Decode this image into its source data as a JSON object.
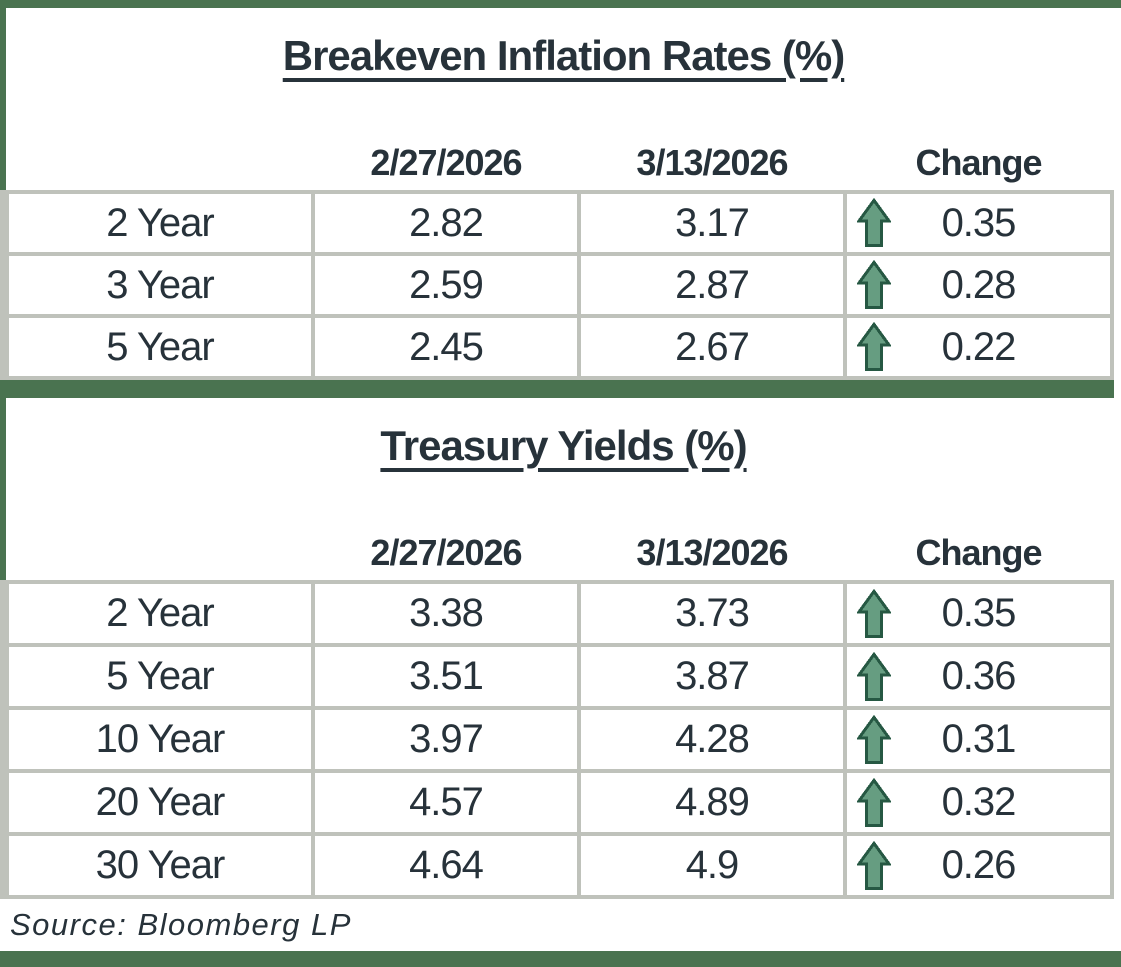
{
  "colors": {
    "accent_green": "#4a7350",
    "grid_gray": "#bfc2bb",
    "text": "#27323a",
    "arrow_fill": "#669d81",
    "arrow_outline": "#265843"
  },
  "icons": {
    "change_up": "up-arrow-icon"
  },
  "source_note": "Source: Bloomberg LP",
  "chart_data": [
    {
      "type": "table",
      "title": "Breakeven Inflation Rates (%)",
      "columns": [
        "",
        "2/27/2026",
        "3/13/2026",
        "Change"
      ],
      "rows": [
        {
          "label": "2 Year",
          "v1": "2.82",
          "v2": "3.17",
          "direction": "up",
          "change": "0.35"
        },
        {
          "label": "3 Year",
          "v1": "2.59",
          "v2": "2.87",
          "direction": "up",
          "change": "0.28"
        },
        {
          "label": "5 Year",
          "v1": "2.45",
          "v2": "2.67",
          "direction": "up",
          "change": "0.22"
        }
      ]
    },
    {
      "type": "table",
      "title": "Treasury Yields (%)",
      "columns": [
        "",
        "2/27/2026",
        "3/13/2026",
        "Change"
      ],
      "rows": [
        {
          "label": "2 Year",
          "v1": "3.38",
          "v2": "3.73",
          "direction": "up",
          "change": "0.35"
        },
        {
          "label": "5 Year",
          "v1": "3.51",
          "v2": "3.87",
          "direction": "up",
          "change": "0.36"
        },
        {
          "label": "10 Year",
          "v1": "3.97",
          "v2": "4.28",
          "direction": "up",
          "change": "0.31"
        },
        {
          "label": "20 Year",
          "v1": "4.57",
          "v2": "4.89",
          "direction": "up",
          "change": "0.32"
        },
        {
          "label": "30 Year",
          "v1": "4.64",
          "v2": "4.9",
          "direction": "up",
          "change": "0.26"
        }
      ]
    }
  ]
}
